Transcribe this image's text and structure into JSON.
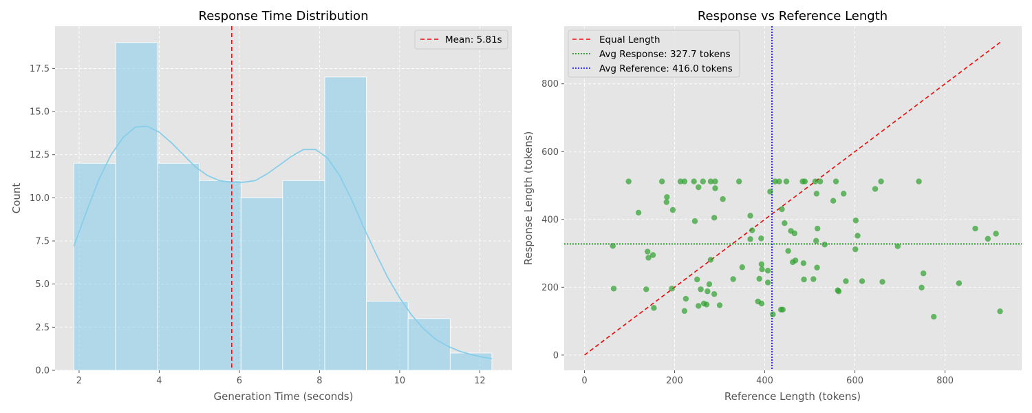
{
  "chart_data": [
    {
      "type": "bar",
      "title": "Response Time Distribution",
      "xlabel": "Generation Time (seconds)",
      "ylabel": "Count",
      "xlim": [
        1.4,
        12.8
      ],
      "ylim": [
        0,
        19.95
      ],
      "xticks": [
        "2",
        "4",
        "6",
        "8",
        "10",
        "12"
      ],
      "xtick_values": [
        2,
        4,
        6,
        8,
        10,
        12
      ],
      "yticks": [
        "0.0",
        "2.5",
        "5.0",
        "7.5",
        "10.0",
        "12.5",
        "15.0",
        "17.5"
      ],
      "ytick_values": [
        0,
        2.5,
        5,
        7.5,
        10,
        12.5,
        15,
        17.5
      ],
      "grid": true,
      "legend_position": "top-right",
      "bins": [
        {
          "x0": 1.87,
          "x1": 2.91,
          "count": 12
        },
        {
          "x0": 2.91,
          "x1": 3.96,
          "count": 19
        },
        {
          "x0": 3.96,
          "x1": 5.0,
          "count": 12
        },
        {
          "x0": 5.0,
          "x1": 6.04,
          "count": 11
        },
        {
          "x0": 6.04,
          "x1": 7.08,
          "count": 10
        },
        {
          "x0": 7.08,
          "x1": 8.13,
          "count": 11
        },
        {
          "x0": 8.13,
          "x1": 9.17,
          "count": 17
        },
        {
          "x0": 9.17,
          "x1": 10.21,
          "count": 4
        },
        {
          "x0": 10.21,
          "x1": 11.26,
          "count": 3
        },
        {
          "x0": 11.26,
          "x1": 12.3,
          "count": 1
        }
      ],
      "bar_color": "#87ceeb",
      "kde": {
        "x": [
          1.87,
          2.2,
          2.5,
          2.8,
          3.1,
          3.4,
          3.7,
          4.0,
          4.3,
          4.6,
          4.9,
          5.2,
          5.5,
          5.8,
          6.1,
          6.4,
          6.7,
          7.0,
          7.3,
          7.6,
          7.9,
          8.2,
          8.5,
          8.8,
          9.1,
          9.4,
          9.7,
          10.0,
          10.3,
          10.6,
          10.9,
          11.2,
          11.5,
          11.8,
          12.1,
          12.3
        ],
        "y": [
          7.2,
          9.3,
          11.1,
          12.5,
          13.5,
          14.1,
          14.15,
          13.8,
          13.2,
          12.5,
          11.8,
          11.3,
          11.0,
          10.9,
          10.9,
          11.0,
          11.4,
          11.9,
          12.4,
          12.8,
          12.8,
          12.3,
          11.3,
          9.9,
          8.3,
          6.8,
          5.4,
          4.2,
          3.2,
          2.4,
          1.8,
          1.4,
          1.1,
          0.9,
          0.75,
          0.68
        ],
        "color": "#87ceeb"
      },
      "mean_line": {
        "x": 5.81,
        "label": "Mean: 5.81s",
        "color": "#ff0000"
      }
    },
    {
      "type": "scatter",
      "title": "Response vs Reference Length",
      "xlabel": "Reference Length (tokens)",
      "ylabel": "Response Length (tokens)",
      "xlim": [
        -45,
        970
      ],
      "ylim": [
        -45,
        970
      ],
      "xticks": [
        "0",
        "200",
        "400",
        "600",
        "800"
      ],
      "xtick_values": [
        0,
        200,
        400,
        600,
        800
      ],
      "yticks": [
        "0",
        "200",
        "400",
        "600",
        "800"
      ],
      "ytick_values": [
        0,
        200,
        400,
        600,
        800
      ],
      "grid": true,
      "legend_position": "top-left",
      "point_color": "#2ca02c",
      "points": [
        [
          63,
          322
        ],
        [
          65,
          196
        ],
        [
          98,
          512
        ],
        [
          120,
          420
        ],
        [
          137,
          194
        ],
        [
          140,
          305
        ],
        [
          142,
          287
        ],
        [
          152,
          295
        ],
        [
          154,
          139
        ],
        [
          172,
          512
        ],
        [
          182,
          451
        ],
        [
          183,
          466
        ],
        [
          194,
          196
        ],
        [
          196,
          428
        ],
        [
          213,
          512
        ],
        [
          222,
          512
        ],
        [
          222,
          130
        ],
        [
          225,
          166
        ],
        [
          243,
          512
        ],
        [
          245,
          395
        ],
        [
          250,
          223
        ],
        [
          253,
          145
        ],
        [
          253,
          495
        ],
        [
          258,
          194
        ],
        [
          263,
          512
        ],
        [
          265,
          152
        ],
        [
          271,
          149
        ],
        [
          273,
          188
        ],
        [
          277,
          209
        ],
        [
          280,
          281
        ],
        [
          280,
          512
        ],
        [
          288,
          180
        ],
        [
          288,
          405
        ],
        [
          290,
          512
        ],
        [
          290,
          492
        ],
        [
          300,
          147
        ],
        [
          307,
          460
        ],
        [
          330,
          224
        ],
        [
          343,
          512
        ],
        [
          350,
          259
        ],
        [
          368,
          342
        ],
        [
          368,
          411
        ],
        [
          372,
          368
        ],
        [
          385,
          158
        ],
        [
          388,
          225
        ],
        [
          392,
          344
        ],
        [
          393,
          268
        ],
        [
          393,
          152
        ],
        [
          394,
          253
        ],
        [
          407,
          249
        ],
        [
          407,
          214
        ],
        [
          412,
          482
        ],
        [
          418,
          120
        ],
        [
          423,
          512
        ],
        [
          432,
          512
        ],
        [
          436,
          134
        ],
        [
          438,
          430
        ],
        [
          440,
          134
        ],
        [
          444,
          389
        ],
        [
          448,
          512
        ],
        [
          452,
          307
        ],
        [
          458,
          366
        ],
        [
          462,
          274
        ],
        [
          466,
          359
        ],
        [
          468,
          279
        ],
        [
          484,
          512
        ],
        [
          486,
          271
        ],
        [
          487,
          223
        ],
        [
          489,
          512
        ],
        [
          508,
          224
        ],
        [
          512,
          512
        ],
        [
          514,
          337
        ],
        [
          515,
          476
        ],
        [
          516,
          258
        ],
        [
          517,
          373
        ],
        [
          523,
          512
        ],
        [
          533,
          326
        ],
        [
          552,
          455
        ],
        [
          558,
          512
        ],
        [
          562,
          191
        ],
        [
          564,
          188
        ],
        [
          575,
          476
        ],
        [
          580,
          218
        ],
        [
          601,
          312
        ],
        [
          602,
          397
        ],
        [
          606,
          352
        ],
        [
          616,
          218
        ],
        [
          645,
          490
        ],
        [
          658,
          512
        ],
        [
          661,
          216
        ],
        [
          695,
          321
        ],
        [
          742,
          512
        ],
        [
          748,
          199
        ],
        [
          752,
          241
        ],
        [
          775,
          113
        ],
        [
          831,
          212
        ],
        [
          867,
          373
        ],
        [
          895,
          343
        ],
        [
          913,
          358
        ],
        [
          922,
          129
        ]
      ],
      "equal_line": {
        "from": [
          0,
          0
        ],
        "to": [
          925,
          925
        ],
        "label": "Equal Length",
        "color": "#ff0000"
      },
      "avg_response": {
        "y": 327.7,
        "label": "Avg Response: 327.7 tokens",
        "color": "#008000"
      },
      "avg_reference": {
        "x": 416.0,
        "label": "Avg Reference: 416.0 tokens",
        "color": "#0000ff"
      }
    }
  ]
}
